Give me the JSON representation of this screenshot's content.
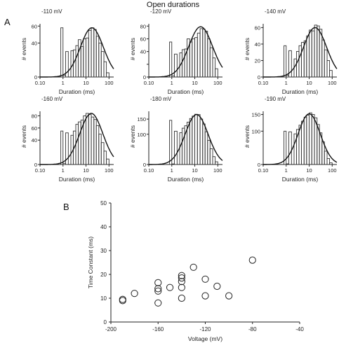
{
  "figure": {
    "title": "Open durations",
    "panel_a_label": "A",
    "panel_b_label": "B"
  },
  "chart_data": [
    {
      "type": "bar",
      "voltage_label": "-110 mV",
      "xlabel": "Duration (ms)",
      "ylabel": "# events",
      "x_scale": "log",
      "xlim": [
        0.1,
        160
      ],
      "x_ticks": [
        0.1,
        1,
        10,
        100
      ],
      "x_tick_labels": [
        "0.10",
        "1",
        "10",
        "100"
      ],
      "ylim": [
        0,
        66
      ],
      "y_ticks": [
        0,
        40,
        60
      ],
      "y_tick_labels": [
        "0",
        "40",
        "60"
      ],
      "histogram_bins": [
        0.8,
        1,
        1.3,
        1.7,
        2.2,
        2.8,
        3.6,
        4.6,
        6,
        7.7,
        10,
        13,
        17,
        22,
        28,
        36,
        46,
        60,
        77,
        100,
        130
      ],
      "histogram_counts": [
        58,
        2,
        30,
        0,
        31,
        32,
        37,
        44,
        36,
        45,
        46,
        55,
        58,
        56,
        48,
        40,
        30,
        18,
        5,
        0
      ],
      "fit_peak_ms": 18,
      "fit_peak_value": 58,
      "fit_width_decades": 0.5
    },
    {
      "type": "bar",
      "voltage_label": "-120 mV",
      "xlabel": "Duration (ms)",
      "ylabel": "# events",
      "x_scale": "log",
      "xlim": [
        0.1,
        160
      ],
      "x_ticks": [
        0.1,
        1,
        10,
        100
      ],
      "x_tick_labels": [
        "0.10",
        "1",
        "10",
        "100"
      ],
      "ylim": [
        0,
        88
      ],
      "y_ticks": [
        0,
        20,
        40,
        60,
        80
      ],
      "y_tick_labels": [
        "0",
        "",
        "40",
        "60",
        "80"
      ],
      "histogram_bins": [
        0.8,
        1,
        1.3,
        1.7,
        2.2,
        2.8,
        3.6,
        4.6,
        6,
        7.7,
        10,
        13,
        17,
        22,
        28,
        36,
        46,
        60,
        77,
        100,
        130
      ],
      "histogram_counts": [
        55,
        2,
        36,
        0,
        38,
        43,
        44,
        60,
        55,
        60,
        62,
        69,
        76,
        75,
        72,
        60,
        46,
        30,
        13,
        0
      ],
      "fit_peak_ms": 18,
      "fit_peak_value": 79,
      "fit_width_decades": 0.52
    },
    {
      "type": "bar",
      "voltage_label": "-140 mV",
      "xlabel": "Duration (ms)",
      "ylabel": "# events",
      "x_scale": "log",
      "xlim": [
        0.1,
        160
      ],
      "x_ticks": [
        0.1,
        1,
        10,
        100
      ],
      "x_tick_labels": [
        "0.10",
        "1",
        "10",
        "100"
      ],
      "ylim": [
        0,
        68
      ],
      "y_ticks": [
        0,
        20,
        40,
        60
      ],
      "y_tick_labels": [
        "0",
        "20",
        "40",
        "60"
      ],
      "histogram_bins": [
        0.8,
        1,
        1.3,
        1.7,
        2.2,
        2.8,
        3.6,
        4.6,
        6,
        7.7,
        10,
        13,
        17,
        22,
        28,
        36,
        46,
        60,
        77,
        100,
        130
      ],
      "histogram_counts": [
        38,
        2,
        32,
        0,
        22,
        31,
        38,
        42,
        44,
        50,
        57,
        56,
        63,
        62,
        58,
        45,
        33,
        20,
        8,
        0
      ],
      "fit_peak_ms": 18,
      "fit_peak_value": 60,
      "fit_width_decades": 0.5
    },
    {
      "type": "bar",
      "voltage_label": "-160 mV",
      "xlabel": "Duration (ms)",
      "ylabel": "# events",
      "x_scale": "log",
      "xlim": [
        0.1,
        160
      ],
      "x_ticks": [
        0.1,
        1,
        10,
        100
      ],
      "x_tick_labels": [
        "0.10",
        "1",
        "10",
        "100"
      ],
      "ylim": [
        0,
        92
      ],
      "y_ticks": [
        0,
        40,
        60,
        80
      ],
      "y_tick_labels": [
        "0",
        "40",
        "60",
        "80"
      ],
      "histogram_bins": [
        0.8,
        1,
        1.3,
        1.7,
        2.2,
        2.8,
        3.6,
        4.6,
        6,
        7.7,
        10,
        13,
        17,
        22,
        28,
        36,
        46,
        60,
        77,
        100,
        130
      ],
      "histogram_counts": [
        55,
        2,
        52,
        0,
        48,
        55,
        66,
        70,
        73,
        80,
        84,
        82,
        78,
        74,
        64,
        50,
        36,
        22,
        9,
        0
      ],
      "fit_peak_ms": 17,
      "fit_peak_value": 84,
      "fit_width_decades": 0.5
    },
    {
      "type": "bar",
      "voltage_label": "-180 mV",
      "xlabel": "Duration (ms)",
      "ylabel": "# events",
      "x_scale": "log",
      "xlim": [
        0.1,
        160
      ],
      "x_ticks": [
        0.1,
        1,
        10,
        100
      ],
      "x_tick_labels": [
        "0.10",
        "1",
        "10",
        "100"
      ],
      "ylim": [
        0,
        185
      ],
      "y_ticks": [
        0,
        100,
        150
      ],
      "y_tick_labels": [
        "0",
        "100",
        "150"
      ],
      "histogram_bins": [
        0.8,
        1,
        1.3,
        1.7,
        2.2,
        2.8,
        3.6,
        4.6,
        6,
        7.7,
        10,
        13,
        17,
        22,
        28,
        36,
        46,
        60,
        77,
        100,
        130
      ],
      "histogram_counts": [
        146,
        2,
        110,
        0,
        105,
        120,
        128,
        140,
        152,
        160,
        166,
        165,
        150,
        134,
        108,
        80,
        52,
        26,
        9,
        0
      ],
      "fit_peak_ms": 12,
      "fit_peak_value": 165,
      "fit_width_decades": 0.5
    },
    {
      "type": "bar",
      "voltage_label": "-190 mV",
      "xlabel": "Duration (ms)",
      "ylabel": "# events",
      "x_scale": "log",
      "xlim": [
        0.1,
        160
      ],
      "x_ticks": [
        0.1,
        1,
        10,
        100
      ],
      "x_tick_labels": [
        "0.10",
        "1",
        "10",
        "100"
      ],
      "ylim": [
        0,
        168
      ],
      "y_ticks": [
        0,
        100,
        150
      ],
      "y_tick_labels": [
        "0",
        "100",
        "150"
      ],
      "histogram_bins": [
        0.8,
        1,
        1.3,
        1.7,
        2.2,
        2.8,
        3.6,
        4.6,
        6,
        7.7,
        10,
        13,
        17,
        22,
        28,
        36,
        46,
        60,
        77,
        100,
        130
      ],
      "histogram_counts": [
        100,
        2,
        98,
        0,
        92,
        105,
        118,
        130,
        142,
        148,
        155,
        150,
        140,
        120,
        95,
        68,
        40,
        18,
        5,
        0
      ],
      "fit_peak_ms": 10,
      "fit_peak_value": 152,
      "fit_width_decades": 0.48
    },
    {
      "type": "scatter",
      "xlabel": "Voltage (mV)",
      "ylabel": "Time Constant (ms)",
      "xlim": [
        -200,
        -40
      ],
      "ylim": [
        0,
        50
      ],
      "x_ticks": [
        -200,
        -160,
        -120,
        -80,
        -40
      ],
      "x_tick_labels": [
        "-200",
        "-160",
        "-120",
        "-80",
        "-40"
      ],
      "y_ticks": [
        0,
        10,
        20,
        30,
        40,
        50
      ],
      "y_tick_labels": [
        "0",
        "10",
        "20",
        "30",
        "40",
        "50"
      ],
      "grid": false,
      "points": [
        {
          "x": -190,
          "y": 9
        },
        {
          "x": -190,
          "y": 9.5
        },
        {
          "x": -180,
          "y": 12
        },
        {
          "x": -160,
          "y": 8
        },
        {
          "x": -160,
          "y": 13
        },
        {
          "x": -160,
          "y": 14
        },
        {
          "x": -160,
          "y": 16.5
        },
        {
          "x": -150,
          "y": 14.5
        },
        {
          "x": -140,
          "y": 10
        },
        {
          "x": -140,
          "y": 14.5
        },
        {
          "x": -140,
          "y": 17
        },
        {
          "x": -140,
          "y": 18.5
        },
        {
          "x": -140,
          "y": 19.5
        },
        {
          "x": -130,
          "y": 23
        },
        {
          "x": -120,
          "y": 11
        },
        {
          "x": -120,
          "y": 18
        },
        {
          "x": -110,
          "y": 15
        },
        {
          "x": -100,
          "y": 11
        },
        {
          "x": -80,
          "y": 26
        }
      ]
    }
  ]
}
